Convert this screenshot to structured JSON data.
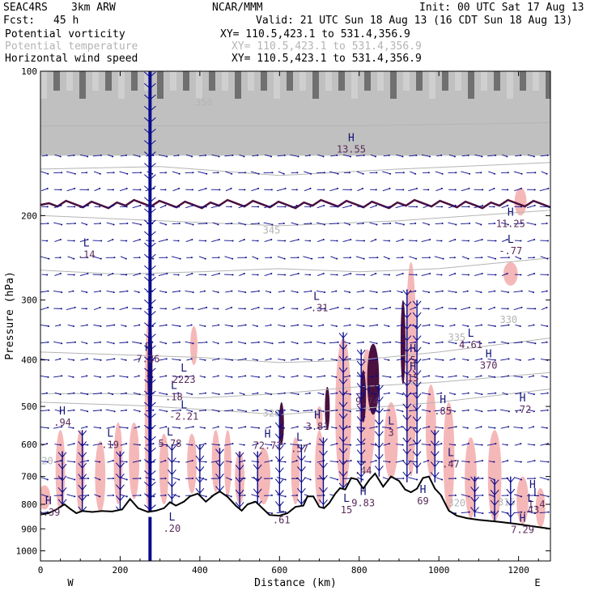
{
  "header": {
    "project": "SEAC4RS",
    "model": "3km ARW",
    "org": "NCAR/MMM",
    "init": "Init: 00 UTC Sat 17 Aug 13",
    "fcst_label": "Fcst:",
    "fcst_value": "45 h",
    "valid": "Valid: 21 UTC Sun 18 Aug 13 (16 CDT Sun 18 Aug 13)"
  },
  "fields": [
    {
      "name": "Potential vorticity",
      "xy": "XY= 110.5,423.1 to 531.4,356.9",
      "color": "#000000"
    },
    {
      "name": "Potential temperature",
      "xy": "XY= 110.5,423.1 to 531.4,356.9",
      "color": "#b4b4b4"
    },
    {
      "name": "Horizontal wind speed",
      "xy": "XY= 110.5,423.1 to 531.4,356.9",
      "color": "#000000"
    }
  ],
  "chart_data": {
    "type": "cross-section",
    "xlabel": "Distance (km)",
    "ylabel": "Pressure (hPa)",
    "xlim": [
      0,
      1280
    ],
    "ylim": [
      1050,
      100
    ],
    "y_scale": "log",
    "xticks": [
      0,
      200,
      400,
      600,
      800,
      1000,
      1200
    ],
    "yticks": [
      100,
      200,
      300,
      400,
      500,
      600,
      700,
      800,
      900,
      1000
    ],
    "left_end": "W",
    "right_end": "E",
    "colors": {
      "pv_fill": "#f4b4b4",
      "pv_dark": "#4a1040",
      "theta": "#b4b4b4",
      "wind": "#0a0a8c",
      "extrema": "#141478",
      "extrema_value": "#5a2a5a",
      "terrain": "#000000"
    },
    "terrain": [
      [
        0,
        840
      ],
      [
        20,
        835
      ],
      [
        40,
        820
      ],
      [
        60,
        800
      ],
      [
        75,
        818
      ],
      [
        90,
        835
      ],
      [
        105,
        826
      ],
      [
        130,
        830
      ],
      [
        155,
        826
      ],
      [
        180,
        828
      ],
      [
        205,
        820
      ],
      [
        225,
        780
      ],
      [
        245,
        815
      ],
      [
        270,
        830
      ],
      [
        290,
        825
      ],
      [
        310,
        815
      ],
      [
        325,
        792
      ],
      [
        340,
        805
      ],
      [
        360,
        790
      ],
      [
        375,
        770
      ],
      [
        395,
        760
      ],
      [
        415,
        790
      ],
      [
        435,
        765
      ],
      [
        450,
        752
      ],
      [
        470,
        772
      ],
      [
        490,
        805
      ],
      [
        505,
        825
      ],
      [
        520,
        800
      ],
      [
        540,
        790
      ],
      [
        555,
        812
      ],
      [
        575,
        842
      ],
      [
        600,
        845
      ],
      [
        620,
        835
      ],
      [
        640,
        810
      ],
      [
        660,
        805
      ],
      [
        670,
        770
      ],
      [
        685,
        770
      ],
      [
        700,
        810
      ],
      [
        712,
        815
      ],
      [
        725,
        795
      ],
      [
        740,
        760
      ],
      [
        752,
        740
      ],
      [
        765,
        745
      ],
      [
        780,
        705
      ],
      [
        795,
        710
      ],
      [
        810,
        742
      ],
      [
        825,
        712
      ],
      [
        840,
        690
      ],
      [
        860,
        735
      ],
      [
        880,
        700
      ],
      [
        900,
        715
      ],
      [
        915,
        745
      ],
      [
        930,
        755
      ],
      [
        945,
        742
      ],
      [
        960,
        705
      ],
      [
        975,
        700
      ],
      [
        990,
        742
      ],
      [
        1005,
        765
      ],
      [
        1025,
        825
      ],
      [
        1045,
        845
      ],
      [
        1070,
        855
      ],
      [
        1100,
        862
      ],
      [
        1150,
        870
      ],
      [
        1200,
        880
      ],
      [
        1240,
        890
      ],
      [
        1280,
        900
      ]
    ],
    "theta_labels": [
      {
        "x": 580,
        "p": 525,
        "text": "320"
      },
      {
        "x": 1175,
        "p": 335,
        "text": "330"
      },
      {
        "x": 1045,
        "p": 365,
        "text": "335"
      },
      {
        "x": 580,
        "p": 218,
        "text": "345"
      },
      {
        "x": 410,
        "p": 118,
        "text": "350"
      },
      {
        "x": 1045,
        "p": 808,
        "text": "320"
      },
      {
        "x": 10,
        "p": 660,
        "text": "320"
      },
      {
        "x": 1170,
        "p": 805,
        "text": "315"
      }
    ],
    "theta_lines": [
      [
        [
          0,
          385
        ],
        [
          200,
          390
        ],
        [
          400,
          395
        ],
        [
          600,
          405
        ],
        [
          800,
          400
        ],
        [
          1000,
          385
        ],
        [
          1280,
          360
        ]
      ],
      [
        [
          0,
          470
        ],
        [
          200,
          470
        ],
        [
          400,
          480
        ],
        [
          600,
          470
        ],
        [
          800,
          455
        ],
        [
          1000,
          445
        ],
        [
          1280,
          425
        ]
      ],
      [
        [
          0,
          490
        ],
        [
          250,
          498
        ],
        [
          450,
          510
        ],
        [
          600,
          520
        ],
        [
          800,
          505
        ],
        [
          1000,
          490
        ],
        [
          1280,
          460
        ]
      ],
      [
        [
          0,
          260
        ],
        [
          200,
          265
        ],
        [
          400,
          262
        ],
        [
          600,
          258
        ],
        [
          800,
          262
        ],
        [
          1000,
          258
        ],
        [
          1280,
          245
        ]
      ],
      [
        [
          0,
          200
        ],
        [
          300,
          205
        ],
        [
          600,
          210
        ],
        [
          900,
          205
        ],
        [
          1280,
          195
        ]
      ],
      [
        [
          0,
          160
        ],
        [
          300,
          158
        ],
        [
          600,
          165
        ],
        [
          900,
          160
        ],
        [
          1280,
          155
        ]
      ],
      [
        [
          0,
          130
        ],
        [
          400,
          130
        ],
        [
          800,
          130
        ],
        [
          1280,
          128
        ]
      ]
    ],
    "pv_regions": [
      {
        "x": 10,
        "p_top": 730,
        "p_bot": 820,
        "w": 30
      },
      {
        "x": 50,
        "p_top": 560,
        "p_bot": 830,
        "w": 24
      },
      {
        "x": 100,
        "p_top": 560,
        "p_bot": 830,
        "w": 22
      },
      {
        "x": 150,
        "p_top": 590,
        "p_bot": 830,
        "w": 26
      },
      {
        "x": 195,
        "p_top": 540,
        "p_bot": 800,
        "w": 22
      },
      {
        "x": 235,
        "p_top": 540,
        "p_bot": 780,
        "w": 26
      },
      {
        "x": 270,
        "p_top": 330,
        "p_bot": 830,
        "w": 16
      },
      {
        "x": 310,
        "p_top": 570,
        "p_bot": 800,
        "w": 24
      },
      {
        "x": 380,
        "p_top": 570,
        "p_bot": 760,
        "w": 24
      },
      {
        "x": 440,
        "p_top": 560,
        "p_bot": 755,
        "w": 20
      },
      {
        "x": 470,
        "p_top": 560,
        "p_bot": 770,
        "w": 18
      },
      {
        "x": 500,
        "p_top": 620,
        "p_bot": 800,
        "w": 24
      },
      {
        "x": 560,
        "p_top": 610,
        "p_bot": 800,
        "w": 34
      },
      {
        "x": 640,
        "p_top": 580,
        "p_bot": 800,
        "w": 22
      },
      {
        "x": 700,
        "p_top": 560,
        "p_bot": 800,
        "w": 22
      },
      {
        "x": 760,
        "p_top": 360,
        "p_bot": 740,
        "w": 40
      },
      {
        "x": 820,
        "p_top": 380,
        "p_bot": 690,
        "w": 40
      },
      {
        "x": 880,
        "p_top": 490,
        "p_bot": 710,
        "w": 34
      },
      {
        "x": 930,
        "p_top": 250,
        "p_bot": 700,
        "w": 28
      },
      {
        "x": 980,
        "p_top": 450,
        "p_bot": 700,
        "w": 26
      },
      {
        "x": 1025,
        "p_top": 490,
        "p_bot": 825,
        "w": 28
      },
      {
        "x": 1080,
        "p_top": 580,
        "p_bot": 855,
        "w": 30
      },
      {
        "x": 1140,
        "p_top": 560,
        "p_bot": 870,
        "w": 34
      },
      {
        "x": 1210,
        "p_top": 700,
        "p_bot": 880,
        "w": 30
      },
      {
        "x": 1255,
        "p_top": 740,
        "p_bot": 895,
        "w": 24
      },
      {
        "x": 1180,
        "p_top": 250,
        "p_bot": 280,
        "w": 36
      },
      {
        "x": 385,
        "p_top": 340,
        "p_bot": 410,
        "w": 18
      },
      {
        "x": 1205,
        "p_top": 175,
        "p_bot": 200,
        "w": 30
      },
      {
        "x": 700,
        "p_top": 500,
        "p_bot": 560,
        "w": 14
      }
    ],
    "pv_dark_regions": [
      {
        "x": 275,
        "p_top": 330,
        "p_bot": 550,
        "w": 7
      },
      {
        "x": 835,
        "p_top": 370,
        "p_bot": 520,
        "w": 30
      },
      {
        "x": 810,
        "p_top": 420,
        "p_bot": 540,
        "w": 14
      },
      {
        "x": 720,
        "p_top": 455,
        "p_bot": 560,
        "w": 12
      },
      {
        "x": 605,
        "p_top": 490,
        "p_bot": 600,
        "w": 10
      },
      {
        "x": 910,
        "p_top": 300,
        "p_bot": 450,
        "w": 10
      }
    ],
    "extrema": [
      {
        "kind": "L",
        "x": 115,
        "p": 232,
        "value": ".14"
      },
      {
        "kind": "L",
        "x": 693,
        "p": 300,
        "value": "-.31"
      },
      {
        "kind": "L",
        "x": 1180,
        "p": 228,
        "value": "-.77"
      },
      {
        "kind": "H",
        "x": 1180,
        "p": 200,
        "value": "11.25"
      },
      {
        "kind": "H",
        "x": 780,
        "p": 140,
        "value": "13.55"
      },
      {
        "kind": "H",
        "x": 270,
        "p": 383,
        "value": "7.26"
      },
      {
        "kind": "L",
        "x": 360,
        "p": 423,
        "value": "2223"
      },
      {
        "kind": "L",
        "x": 335,
        "p": 460,
        "value": ".18"
      },
      {
        "kind": "L",
        "x": 360,
        "p": 505,
        "value": "-2.21"
      },
      {
        "kind": "H",
        "x": 55,
        "p": 520,
        "value": ".94"
      },
      {
        "kind": "L",
        "x": 175,
        "p": 578,
        "value": ".19"
      },
      {
        "kind": "L",
        "x": 325,
        "p": 575,
        "value": "5.78"
      },
      {
        "kind": "H",
        "x": 570,
        "p": 580,
        "value": "72.72"
      },
      {
        "kind": "L",
        "x": 650,
        "p": 590,
        "value": ".57"
      },
      {
        "kind": "H",
        "x": 695,
        "p": 530,
        "value": "3.81"
      },
      {
        "kind": "H",
        "x": 820,
        "p": 470,
        "value": "9.74"
      },
      {
        "kind": "H",
        "x": 935,
        "p": 420,
        "value": "15"
      },
      {
        "kind": "H",
        "x": 935,
        "p": 385,
        "value": "5"
      },
      {
        "kind": "L",
        "x": 880,
        "p": 545,
        "value": "3"
      },
      {
        "kind": "L",
        "x": 1080,
        "p": 358,
        "value": "4.61"
      },
      {
        "kind": "H",
        "x": 1125,
        "p": 395,
        "value": "370"
      },
      {
        "kind": "H",
        "x": 1010,
        "p": 492,
        "value": ".85"
      },
      {
        "kind": "H",
        "x": 1210,
        "p": 488,
        "value": ".72"
      },
      {
        "kind": "L",
        "x": 810,
        "p": 655,
        "value": ".44"
      },
      {
        "kind": "L",
        "x": 1030,
        "p": 635,
        "value": ".47"
      },
      {
        "kind": "H",
        "x": 810,
        "p": 765,
        "value": "9.83"
      },
      {
        "kind": "L",
        "x": 1245,
        "p": 770,
        "value": "1.4"
      },
      {
        "kind": "L",
        "x": 1230,
        "p": 790,
        "value": ".43"
      },
      {
        "kind": "H",
        "x": 1235,
        "p": 740,
        "value": ""
      },
      {
        "kind": "H",
        "x": 1210,
        "p": 870,
        "value": "7.29"
      },
      {
        "kind": "L",
        "x": 330,
        "p": 865,
        "value": ".20"
      },
      {
        "kind": "H",
        "x": 20,
        "p": 800,
        "value": "6.39"
      },
      {
        "kind": "L",
        "x": 605,
        "p": 830,
        "value": ".61"
      },
      {
        "kind": "L",
        "x": 768,
        "p": 790,
        "value": "15"
      },
      {
        "kind": "H",
        "x": 960,
        "p": 758,
        "value": "69"
      }
    ],
    "jets": [
      {
        "x": 275,
        "p_top": 100,
        "p_bot": 1050
      },
      {
        "x": 55,
        "p_top": 620,
        "p_bot": 870
      },
      {
        "x": 105,
        "p_top": 560,
        "p_bot": 850
      },
      {
        "x": 200,
        "p_top": 620,
        "p_bot": 850
      },
      {
        "x": 330,
        "p_top": 600,
        "p_bot": 850
      },
      {
        "x": 400,
        "p_top": 600,
        "p_bot": 820
      },
      {
        "x": 450,
        "p_top": 610,
        "p_bot": 820
      },
      {
        "x": 500,
        "p_top": 620,
        "p_bot": 835
      },
      {
        "x": 545,
        "p_top": 620,
        "p_bot": 830
      },
      {
        "x": 600,
        "p_top": 510,
        "p_bot": 830
      },
      {
        "x": 655,
        "p_top": 600,
        "p_bot": 820
      },
      {
        "x": 710,
        "p_top": 580,
        "p_bot": 825
      },
      {
        "x": 760,
        "p_top": 350,
        "p_bot": 760
      },
      {
        "x": 805,
        "p_top": 380,
        "p_bot": 720
      },
      {
        "x": 850,
        "p_top": 450,
        "p_bot": 700
      },
      {
        "x": 920,
        "p_top": 285,
        "p_bot": 720
      },
      {
        "x": 945,
        "p_top": 300,
        "p_bot": 690
      },
      {
        "x": 990,
        "p_top": 560,
        "p_bot": 720
      },
      {
        "x": 1090,
        "p_top": 700,
        "p_bot": 850
      },
      {
        "x": 1140,
        "p_top": 710,
        "p_bot": 865
      },
      {
        "x": 1180,
        "p_top": 700,
        "p_bot": 875
      }
    ]
  }
}
